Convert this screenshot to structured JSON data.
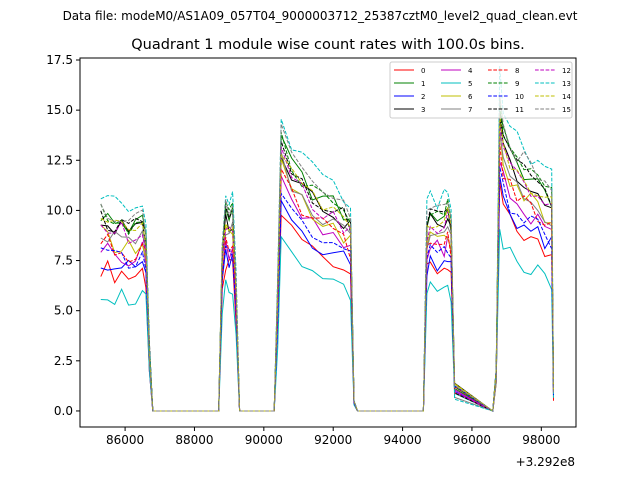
{
  "chart_data": {
    "type": "line",
    "suptitle": "Data file: modeM0/AS1A09_057T04_9000003712_25387cztM0_level2_quad_clean.evt",
    "title": "Quadrant 1 module wise count rates with 100.0s bins.",
    "xlabel": "",
    "ylabel": "",
    "x_offset_label": "+3.292e8",
    "xlim": [
      84700,
      99000
    ],
    "ylim": [
      -0.8,
      17.6
    ],
    "xticks": [
      86000,
      88000,
      90000,
      92000,
      94000,
      96000,
      98000
    ],
    "xtick_labels": [
      "86000",
      "88000",
      "90000",
      "92000",
      "94000",
      "96000",
      "98000"
    ],
    "yticks": [
      0.0,
      2.5,
      5.0,
      7.5,
      10.0,
      12.5,
      15.0,
      17.5
    ],
    "ytick_labels": [
      "0.0",
      "2.5",
      "5.0",
      "7.5",
      "10.0",
      "12.5",
      "15.0",
      "17.5"
    ],
    "legend_position": "top-right",
    "profile": {
      "x": [
        85300,
        85500,
        85700,
        85900,
        86100,
        86300,
        86500,
        86600,
        86700,
        86800,
        88700,
        88800,
        88900,
        89000,
        89100,
        89200,
        89300,
        90300,
        90400,
        90500,
        90800,
        91100,
        91400,
        91700,
        92000,
        92300,
        92500,
        92600,
        92700,
        94600,
        94700,
        94800,
        95000,
        95200,
        95300,
        95400,
        95500,
        96600,
        96700,
        96800,
        96900,
        97100,
        97300,
        97500,
        97700,
        97900,
        98100,
        98300,
        98350
      ],
      "y": [
        1.0,
        0.98,
        0.95,
        0.96,
        0.93,
        0.94,
        0.97,
        0.9,
        0.3,
        0.0,
        0.0,
        0.8,
        1.02,
        0.98,
        1.0,
        0.6,
        0.0,
        0.0,
        0.6,
        1.38,
        1.25,
        1.18,
        1.12,
        1.08,
        1.05,
        1.0,
        0.95,
        0.05,
        0.0,
        0.0,
        0.95,
        1.0,
        0.98,
        1.0,
        1.02,
        0.95,
        0.1,
        0.0,
        0.2,
        1.55,
        1.42,
        1.3,
        1.25,
        1.22,
        1.18,
        1.15,
        1.1,
        1.08,
        0.12
      ]
    },
    "series": [
      {
        "name": "0",
        "color": "#ff0000",
        "style": "solid",
        "level": 7.2
      },
      {
        "name": "1",
        "color": "#008000",
        "style": "solid",
        "level": 9.8
      },
      {
        "name": "2",
        "color": "#0000ff",
        "style": "solid",
        "level": 7.6
      },
      {
        "name": "3",
        "color": "#000000",
        "style": "solid",
        "level": 9.5
      },
      {
        "name": "4",
        "color": "#bf00bf",
        "style": "solid",
        "level": 8.2
      },
      {
        "name": "5",
        "color": "#00bfbf",
        "style": "solid",
        "level": 6.0
      },
      {
        "name": "6",
        "color": "#bfbf00",
        "style": "solid",
        "level": 8.8
      },
      {
        "name": "7",
        "color": "#808080",
        "style": "solid",
        "level": 9.0
      },
      {
        "name": "8",
        "color": "#ff0000",
        "style": "dashed",
        "level": 8.5
      },
      {
        "name": "9",
        "color": "#008000",
        "style": "dashed",
        "level": 9.9
      },
      {
        "name": "10",
        "color": "#0000ff",
        "style": "dashed",
        "level": 7.9
      },
      {
        "name": "11",
        "color": "#000000",
        "style": "dashed",
        "level": 9.7
      },
      {
        "name": "12",
        "color": "#bf00bf",
        "style": "dashed",
        "level": 9.3
      },
      {
        "name": "13",
        "color": "#00bfbf",
        "style": "dashed",
        "level": 10.8
      },
      {
        "name": "14",
        "color": "#bfbf00",
        "style": "dashed",
        "level": 9.6
      },
      {
        "name": "15",
        "color": "#808080",
        "style": "dashed",
        "level": 10.2
      }
    ]
  }
}
